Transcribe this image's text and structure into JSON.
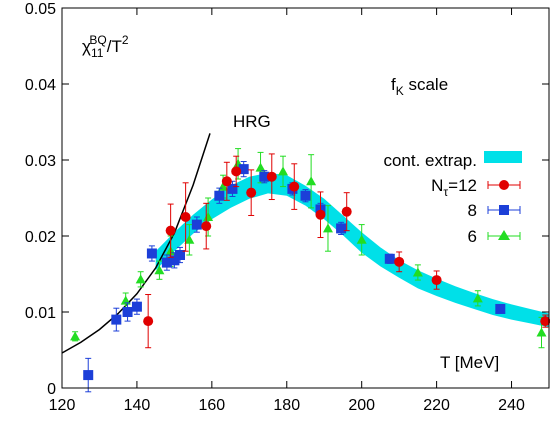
{
  "chart_data": {
    "type": "scatter",
    "title": "",
    "xlabel": "T [MeV]",
    "ylabel_parts": {
      "chi": "χ",
      "sub": "11",
      "sup": "BQ",
      "rest": "/T",
      "pow": "2"
    },
    "scale_label_parts": {
      "f": "f",
      "sub": "K",
      "rest": " scale"
    },
    "xlim": [
      120,
      250
    ],
    "ylim": [
      0,
      0.05
    ],
    "xticks": [
      120,
      140,
      160,
      180,
      200,
      220,
      240
    ],
    "yticks": [
      0,
      0.01,
      0.02,
      0.03,
      0.04,
      0.05
    ],
    "ytick_labels": [
      "0",
      "0.01",
      "0.02",
      "0.03",
      "0.04",
      "0.05"
    ],
    "hrg": {
      "label": "HRG",
      "x": [
        120,
        125,
        130,
        135,
        140,
        145,
        150,
        155,
        159.5
      ],
      "y": [
        0.0046,
        0.006,
        0.0077,
        0.0098,
        0.0124,
        0.0158,
        0.0204,
        0.0267,
        0.0335
      ]
    },
    "band": {
      "name": "cont. extrap.",
      "color": "#00e0e8",
      "x": [
        145,
        150,
        155,
        160,
        165,
        170,
        175,
        180,
        185,
        190,
        195,
        200,
        205,
        210,
        215,
        220,
        225,
        230,
        235,
        240,
        245,
        250
      ],
      "lower": [
        0.0155,
        0.018,
        0.0203,
        0.0222,
        0.0237,
        0.0249,
        0.0256,
        0.0253,
        0.024,
        0.0222,
        0.0201,
        0.0178,
        0.016,
        0.0145,
        0.0131,
        0.0121,
        0.0112,
        0.0104,
        0.0096,
        0.009,
        0.0085,
        0.008
      ],
      "upper": [
        0.018,
        0.0205,
        0.0228,
        0.0248,
        0.0266,
        0.0278,
        0.0283,
        0.028,
        0.0266,
        0.0249,
        0.0227,
        0.0205,
        0.0185,
        0.0168,
        0.0155,
        0.0144,
        0.0134,
        0.0125,
        0.0117,
        0.011,
        0.0104,
        0.0098
      ]
    },
    "legend_position": "right",
    "series": [
      {
        "name": "N",
        "name_sub": "τ",
        "name_rest": "=12",
        "marker": "circle",
        "color": "#e00000",
        "points": [
          {
            "x": 143,
            "y": 0.0088,
            "err": 0.0035
          },
          {
            "x": 149,
            "y": 0.0207,
            "err": 0.0035
          },
          {
            "x": 153,
            "y": 0.0225,
            "err": 0.0045
          },
          {
            "x": 158.5,
            "y": 0.0213,
            "err": 0.003
          },
          {
            "x": 164,
            "y": 0.0272,
            "err": 0.0025
          },
          {
            "x": 166.5,
            "y": 0.0285,
            "err": 0.002
          },
          {
            "x": 170.5,
            "y": 0.0257,
            "err": 0.003
          },
          {
            "x": 176,
            "y": 0.0278,
            "err": 0.003
          },
          {
            "x": 182,
            "y": 0.0265,
            "err": 0.003
          },
          {
            "x": 189,
            "y": 0.0228,
            "err": 0.003
          },
          {
            "x": 196,
            "y": 0.0232,
            "err": 0.0025
          },
          {
            "x": 210,
            "y": 0.0166,
            "err": 0.0013
          },
          {
            "x": 220,
            "y": 0.0142,
            "err": 0.0012
          },
          {
            "x": 249,
            "y": 0.0088,
            "err": 0.0008
          }
        ]
      },
      {
        "name": "8",
        "marker": "square",
        "color": "#1c3fd8",
        "points": [
          {
            "x": 127,
            "y": 0.0017,
            "err": 0.0022
          },
          {
            "x": 134.5,
            "y": 0.009,
            "err": 0.0015
          },
          {
            "x": 137.5,
            "y": 0.01,
            "err": 0.0012
          },
          {
            "x": 140,
            "y": 0.0107,
            "err": 0.001
          },
          {
            "x": 144,
            "y": 0.0177,
            "err": 0.001
          },
          {
            "x": 148,
            "y": 0.0165,
            "err": 0.001
          },
          {
            "x": 150,
            "y": 0.0168,
            "err": 0.001
          },
          {
            "x": 151.5,
            "y": 0.0175,
            "err": 0.001
          },
          {
            "x": 156,
            "y": 0.0215,
            "err": 0.001
          },
          {
            "x": 162,
            "y": 0.0253,
            "err": 0.001
          },
          {
            "x": 165.5,
            "y": 0.0262,
            "err": 0.001
          },
          {
            "x": 168.5,
            "y": 0.0288,
            "err": 0.001
          },
          {
            "x": 174,
            "y": 0.0278,
            "err": 0.0008
          },
          {
            "x": 181.5,
            "y": 0.0262,
            "err": 0.0008
          },
          {
            "x": 185,
            "y": 0.0253,
            "err": 0.0008
          },
          {
            "x": 189,
            "y": 0.0235,
            "err": 0.0008
          },
          {
            "x": 194.5,
            "y": 0.021,
            "err": 0.0008
          },
          {
            "x": 207.5,
            "y": 0.017,
            "err": 0.0006
          },
          {
            "x": 237,
            "y": 0.0104,
            "err": 0.0005
          }
        ]
      },
      {
        "name": "6",
        "marker": "triangle",
        "color": "#22dd22",
        "points": [
          {
            "x": 123.5,
            "y": 0.0068,
            "err": 0.0006
          },
          {
            "x": 137,
            "y": 0.0115,
            "err": 0.001
          },
          {
            "x": 141,
            "y": 0.0143,
            "err": 0.001
          },
          {
            "x": 146,
            "y": 0.0155,
            "err": 0.0012
          },
          {
            "x": 149,
            "y": 0.018,
            "err": 0.002
          },
          {
            "x": 154,
            "y": 0.0195,
            "err": 0.002
          },
          {
            "x": 159,
            "y": 0.0225,
            "err": 0.0025
          },
          {
            "x": 163,
            "y": 0.0265,
            "err": 0.0015
          },
          {
            "x": 167,
            "y": 0.0295,
            "err": 0.002
          },
          {
            "x": 173,
            "y": 0.029,
            "err": 0.002
          },
          {
            "x": 179,
            "y": 0.0285,
            "err": 0.002
          },
          {
            "x": 186.5,
            "y": 0.0272,
            "err": 0.0035
          },
          {
            "x": 191,
            "y": 0.021,
            "err": 0.003
          },
          {
            "x": 200,
            "y": 0.0195,
            "err": 0.002
          },
          {
            "x": 215,
            "y": 0.0152,
            "err": 0.001
          },
          {
            "x": 231,
            "y": 0.0118,
            "err": 0.001
          },
          {
            "x": 248,
            "y": 0.0073,
            "err": 0.002
          }
        ]
      }
    ]
  }
}
